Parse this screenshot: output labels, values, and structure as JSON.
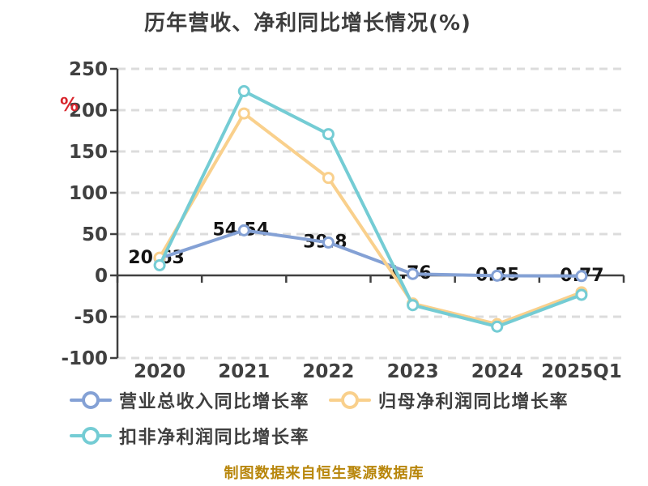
{
  "title": "历年营收、净利同比增长情况(%)",
  "y_axis_unit": "%",
  "source_note": "制图数据来自恒生聚源数据库",
  "chart_data": {
    "type": "line",
    "categories": [
      "2020",
      "2021",
      "2022",
      "2023",
      "2024",
      "2025Q1"
    ],
    "series": [
      {
        "name": "营业总收入同比增长率",
        "color": "#84a1d5",
        "values": [
          20.63,
          54.54,
          39.8,
          1.76,
          -0.35,
          -0.77
        ]
      },
      {
        "name": "归母净利润同比增长率",
        "color": "#f9d08c",
        "values": [
          21.5,
          196,
          118,
          -34,
          -59,
          -20.5
        ]
      },
      {
        "name": "扣非净利润同比增长率",
        "color": "#74ccd4",
        "values": [
          12.3,
          223,
          171,
          -36,
          -62,
          -23.5
        ]
      }
    ],
    "data_labels": [
      "20.63",
      "54.54",
      "39.8",
      "1.76",
      "-0.35",
      "-0.77"
    ],
    "labeled_series_index": 0,
    "y_ticks": [
      250,
      200,
      150,
      100,
      50,
      0,
      -50,
      -100
    ],
    "ylim": [
      -100,
      250
    ],
    "grid": "dashed",
    "legend_position": "bottom-left",
    "axis_color": "#404040",
    "grid_color": "#dcdcdc",
    "label_color": "#141414",
    "unit_color": "#d9262d",
    "source_note_color": "#b8860b"
  }
}
